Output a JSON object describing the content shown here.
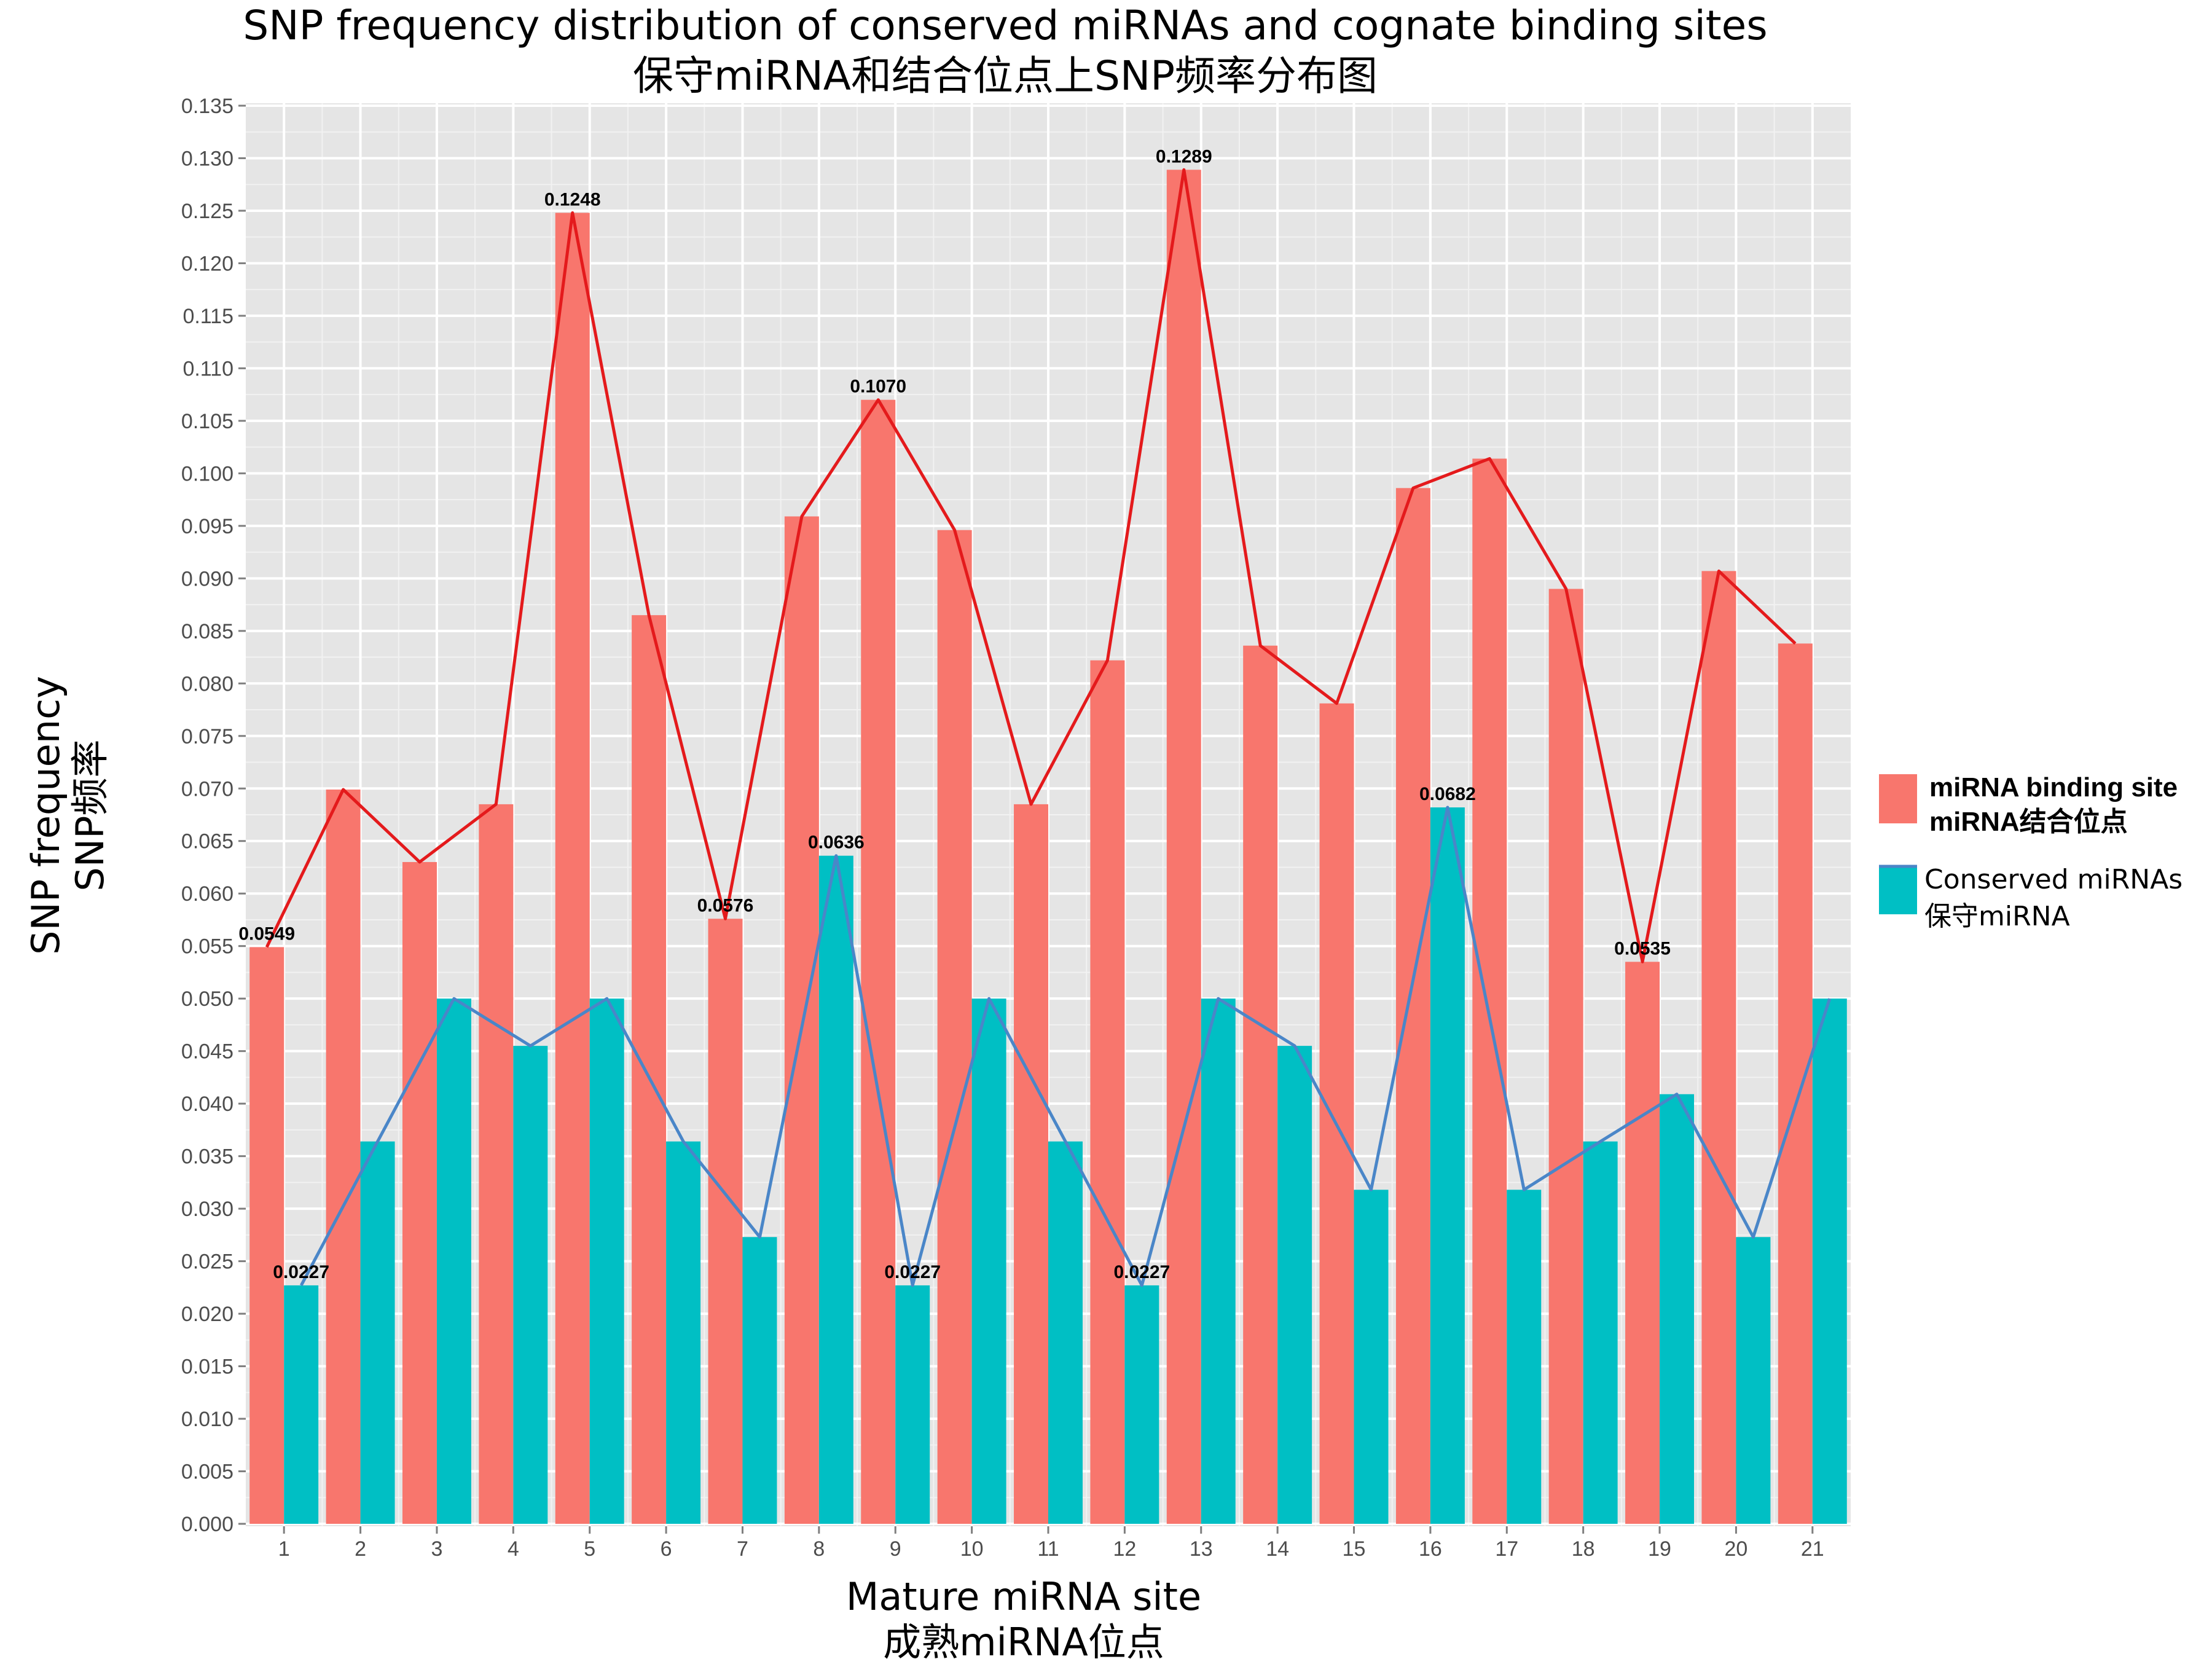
{
  "chart_data": {
    "type": "bar",
    "title": "SNP frequency distribution of conserved miRNAs and cognate binding sites",
    "subtitle": "保守miRNA和结合位点上SNP频率分布图",
    "xlabel": "Mature miRNA site",
    "xlabel_sub": "成熟miRNA位点",
    "ylabel": "SNP frequency",
    "ylabel_sub": "SNP频率",
    "categories": [
      "1",
      "2",
      "3",
      "4",
      "5",
      "6",
      "7",
      "8",
      "9",
      "10",
      "11",
      "12",
      "13",
      "14",
      "15",
      "16",
      "17",
      "18",
      "19",
      "20",
      "21"
    ],
    "ylim": [
      0,
      0.135
    ],
    "yticks": [
      "0.000",
      "0.005",
      "0.010",
      "0.015",
      "0.020",
      "0.025",
      "0.030",
      "0.035",
      "0.040",
      "0.045",
      "0.050",
      "0.055",
      "0.060",
      "0.065",
      "0.070",
      "0.075",
      "0.080",
      "0.085",
      "0.090",
      "0.095",
      "0.100",
      "0.105",
      "0.110",
      "0.115",
      "0.120",
      "0.125",
      "0.130",
      "0.135"
    ],
    "grid": true,
    "legend_position": "right",
    "series": [
      {
        "name": "miRNA binding site",
        "name_sub": "miRNA结合位点",
        "color": "#F8766D",
        "line_color": "#E41A1C",
        "values": [
          0.0549,
          0.0699,
          0.063,
          0.0685,
          0.1248,
          0.0865,
          0.0576,
          0.0959,
          0.107,
          0.0946,
          0.0685,
          0.0822,
          0.1289,
          0.0836,
          0.0781,
          0.0986,
          0.1014,
          0.089,
          0.0535,
          0.0907,
          0.0838
        ]
      },
      {
        "name": "Conserved miRNAs",
        "name_sub": "保守miRNA",
        "color": "#00BFC4",
        "line_color": "#4A86C8",
        "values": [
          0.0227,
          0.0364,
          0.05,
          0.0455,
          0.05,
          0.0364,
          0.0273,
          0.0636,
          0.0227,
          0.05,
          0.0364,
          0.0227,
          0.05,
          0.0455,
          0.0318,
          0.0682,
          0.0318,
          0.0364,
          0.0409,
          0.0273,
          0.05
        ]
      }
    ],
    "annotations": [
      {
        "series": 0,
        "index": 0,
        "text": "0.0549"
      },
      {
        "series": 0,
        "index": 4,
        "text": "0.1248"
      },
      {
        "series": 0,
        "index": 6,
        "text": "0.0576"
      },
      {
        "series": 0,
        "index": 8,
        "text": "0.1070"
      },
      {
        "series": 0,
        "index": 12,
        "text": "0.1289"
      },
      {
        "series": 0,
        "index": 18,
        "text": "0.0535"
      },
      {
        "series": 1,
        "index": 0,
        "text": "0.0227"
      },
      {
        "series": 1,
        "index": 7,
        "text": "0.0636"
      },
      {
        "series": 1,
        "index": 8,
        "text": "0.0227"
      },
      {
        "series": 1,
        "index": 11,
        "text": "0.0227"
      },
      {
        "series": 1,
        "index": 15,
        "text": "0.0682"
      }
    ]
  }
}
